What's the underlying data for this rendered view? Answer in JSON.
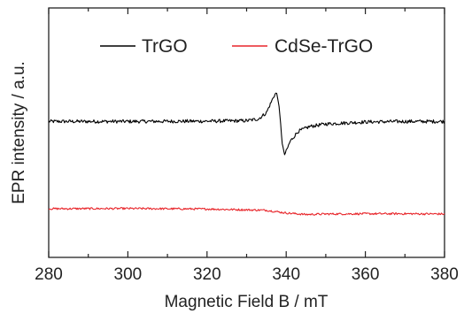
{
  "chart_data": {
    "type": "line",
    "xlabel": "Magnetic Field B / mT",
    "ylabel": "EPR intensity / a.u.",
    "xlim": [
      280,
      380
    ],
    "ylim": [
      0,
      100
    ],
    "xticks": [
      280,
      300,
      320,
      340,
      360,
      380
    ],
    "yticks_shown": false,
    "grid": false,
    "legend_position": "top-center",
    "series": [
      {
        "name": "TrGO",
        "color": "#000000",
        "x": [
          280,
          300,
          320,
          330,
          333,
          335,
          336,
          337,
          337.5,
          338,
          338.5,
          339,
          339.5,
          340,
          341,
          343,
          346,
          350,
          360,
          370,
          380
        ],
        "y": [
          54.5,
          54.5,
          54.6,
          54.8,
          55.5,
          58,
          61.5,
          65,
          66,
          63,
          55,
          46,
          41,
          42.5,
          46.5,
          50.5,
          52.5,
          53.5,
          54.3,
          54.5,
          54.5
        ]
      },
      {
        "name": "CdSe-TrGO",
        "color": "#e8252a",
        "x": [
          280,
          300,
          320,
          335,
          340,
          345,
          350,
          360,
          370,
          380
        ],
        "y": [
          19.5,
          19.6,
          19.4,
          18.9,
          17.8,
          17.2,
          17.4,
          17.5,
          17.5,
          17.4
        ]
      }
    ]
  }
}
